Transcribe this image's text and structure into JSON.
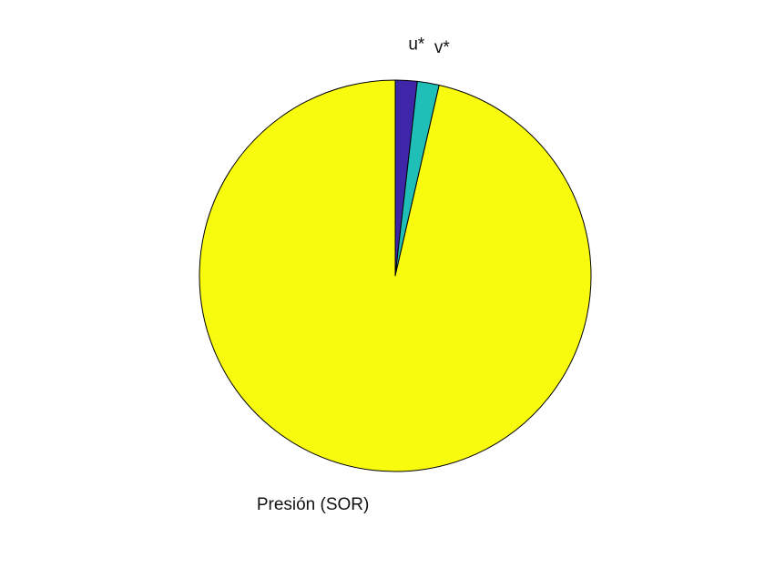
{
  "chart_data": {
    "type": "pie",
    "title": "",
    "start_angle_deg": 90,
    "direction": "clockwise",
    "slices": [
      {
        "label": "u*",
        "value": 1.8,
        "color": "#3d26a8"
      },
      {
        "label": "v*",
        "value": 1.8,
        "color": "#1fbfb8"
      },
      {
        "label": "Presión (SOR)",
        "value": 96.4,
        "color": "#f9fb0e"
      }
    ]
  }
}
